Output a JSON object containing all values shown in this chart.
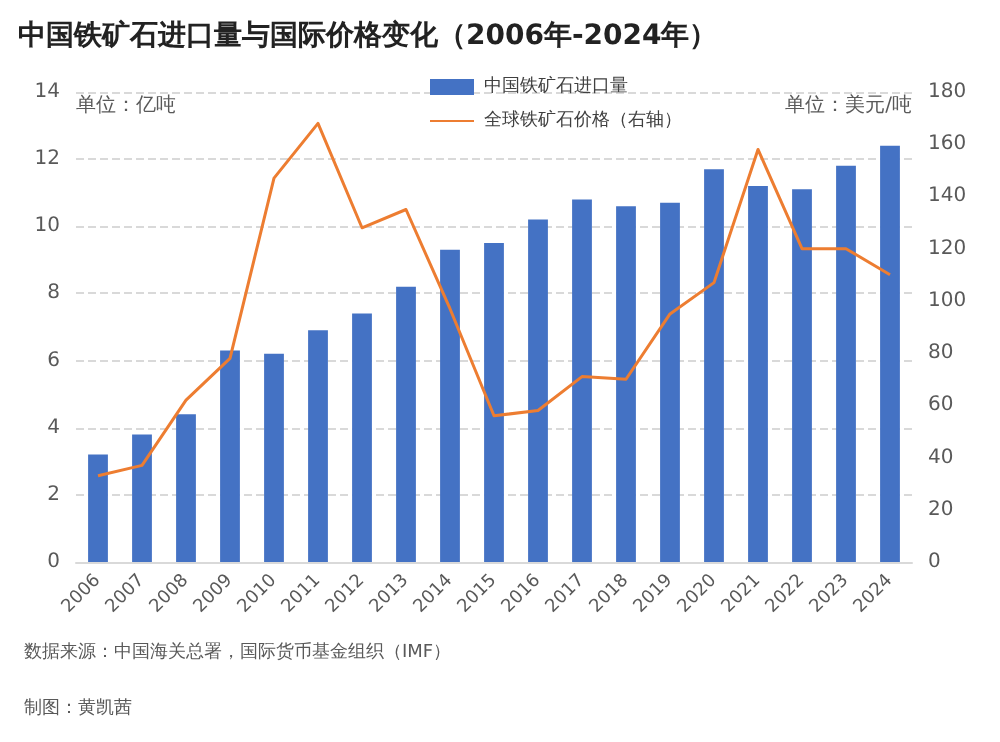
{
  "chart_data": {
    "type": "bar",
    "title": "中国铁矿石进口量与国际价格变化（2006年-2024年）",
    "ylabel": "单位：亿吨",
    "y2label": "单位：美元/吨",
    "categories": [
      "2006",
      "2007",
      "2008",
      "2009",
      "2010",
      "2011",
      "2012",
      "2013",
      "2014",
      "2015",
      "2016",
      "2017",
      "2018",
      "2019",
      "2020",
      "2021",
      "2022",
      "2023",
      "2024"
    ],
    "series": [
      {
        "name": "中国铁矿石进口量",
        "color": "#4472c4",
        "values": [
          3.2,
          3.8,
          4.4,
          6.3,
          6.2,
          6.9,
          7.4,
          8.2,
          9.3,
          9.5,
          10.2,
          10.8,
          10.6,
          10.7,
          11.7,
          11.2,
          11.1,
          11.8,
          12.4
        ]
      },
      {
        "name": "全球铁矿石价格（右轴）",
        "type": "line",
        "axis": "y2",
        "color": "#ed7d31",
        "values": [
          33,
          37,
          62,
          78,
          147,
          168,
          128,
          135,
          97,
          56,
          58,
          71,
          70,
          95,
          107,
          158,
          120,
          120,
          110
        ]
      }
    ],
    "ylim": [
      0,
      14
    ],
    "yticks": [
      0,
      2,
      4,
      6,
      8,
      10,
      12,
      14
    ],
    "y2lim": [
      0,
      180
    ],
    "y2ticks": [
      0,
      20,
      40,
      60,
      80,
      100,
      120,
      140,
      160,
      180
    ],
    "grid": "y",
    "legend": "top right",
    "marker": "none",
    "line_style": "solid",
    "annotations": [
      "数据来源：中国海关总署，国际货币基金组织（IMF）",
      "制图：黄凯茜"
    ]
  }
}
